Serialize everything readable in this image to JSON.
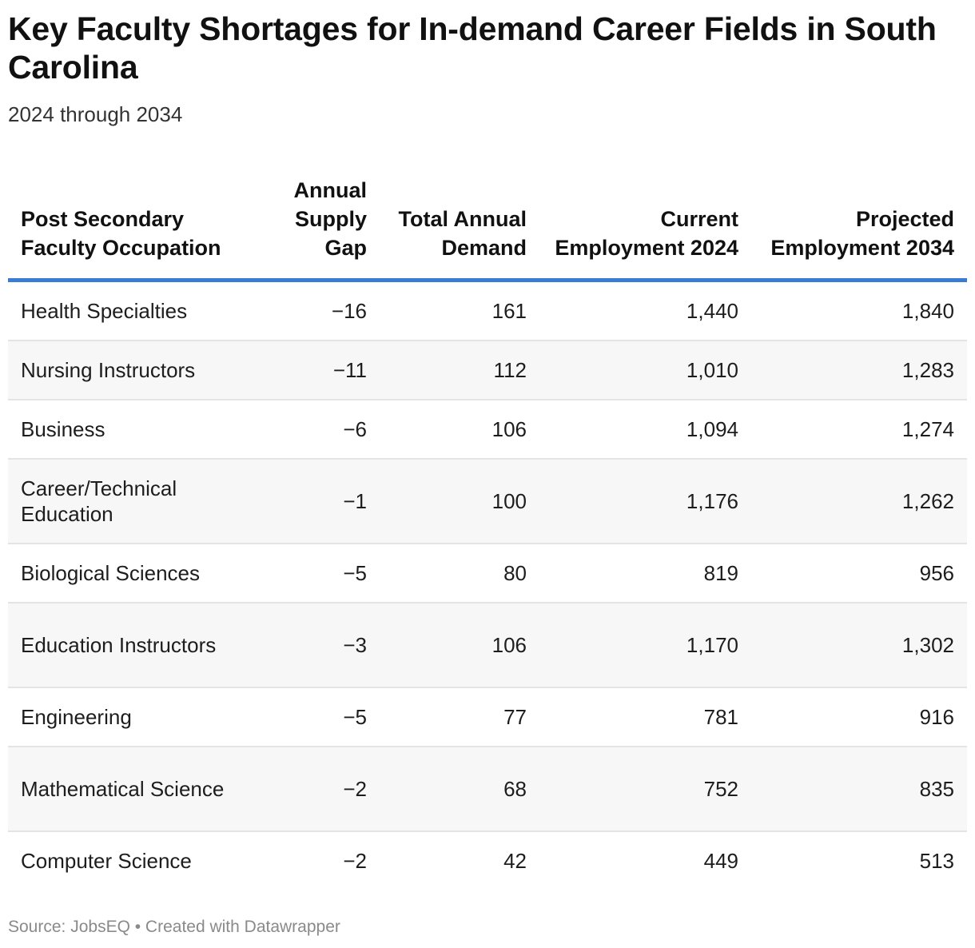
{
  "title": "Key Faculty Shortages for In-demand Career Fields in South Carolina",
  "subtitle": "2024 through 2034",
  "footer": "Source: JobsEQ • Created with Datawrapper",
  "colors": {
    "header_rule": "#3a7bd5",
    "alt_row": "#f7f7f7"
  },
  "chart_data": {
    "type": "table",
    "title": "Key Faculty Shortages for In-demand Career Fields in South Carolina",
    "subtitle": "2024 through 2034",
    "columns": [
      "Post Secondary Faculty Occupation",
      "Annual Supply Gap",
      "Total Annual Demand",
      "Current Employment 2024",
      "Projected Employment 2034"
    ],
    "rows": [
      [
        "Health Specialties",
        "−16",
        "161",
        "1,440",
        "1,840"
      ],
      [
        "Nursing Instructors",
        "−11",
        "112",
        "1,010",
        "1,283"
      ],
      [
        "Business",
        "−6",
        "106",
        "1,094",
        "1,274"
      ],
      [
        "Career/Technical Education",
        "−1",
        "100",
        "1,176",
        "1,262"
      ],
      [
        "Biological Sciences",
        "−5",
        "80",
        "819",
        "956"
      ],
      [
        "Education Instructors",
        "−3",
        "106",
        "1,170",
        "1,302"
      ],
      [
        "Engineering",
        "−5",
        "77",
        "781",
        "916"
      ],
      [
        "Mathematical Science",
        "−2",
        "68",
        "752",
        "835"
      ],
      [
        "Computer Science",
        "−2",
        "42",
        "449",
        "513"
      ]
    ]
  }
}
